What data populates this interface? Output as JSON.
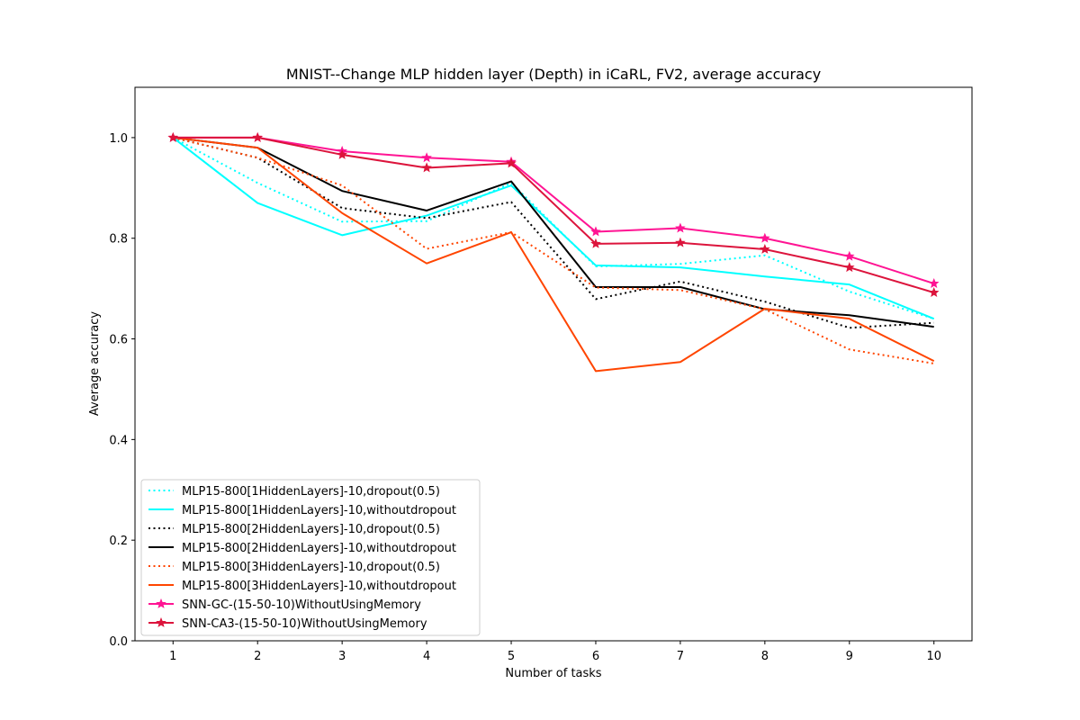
{
  "chart_data": {
    "type": "line",
    "title": "MNIST--Change MLP hidden layer (Depth) in iCaRL, FV2, average accuracy",
    "xlabel": "Number of tasks",
    "ylabel": "Average accuracy",
    "x": [
      1,
      2,
      3,
      4,
      5,
      6,
      7,
      8,
      9,
      10
    ],
    "xlim": [
      0.55,
      10.45
    ],
    "ylim": [
      0.0,
      1.1
    ],
    "xticks": [
      "1",
      "2",
      "3",
      "4",
      "5",
      "6",
      "7",
      "8",
      "9",
      "10"
    ],
    "yticks": [
      "0.0",
      "0.2",
      "0.4",
      "0.6",
      "0.8",
      "1.0"
    ],
    "grid": false,
    "legend_position": "lower-left",
    "series": [
      {
        "name": "MLP15-800[1HiddenLayers]-10,dropout(0.5)",
        "color": "#00ffff",
        "style": "dotted",
        "marker": "none",
        "values": [
          1.0,
          0.91,
          0.833,
          0.834,
          0.91,
          0.744,
          0.749,
          0.766,
          0.694,
          0.64
        ]
      },
      {
        "name": "MLP15-800[1HiddenLayers]-10,withoutdropout",
        "color": "#00ffff",
        "style": "solid",
        "marker": "none",
        "values": [
          1.0,
          0.87,
          0.806,
          0.845,
          0.905,
          0.746,
          0.742,
          0.724,
          0.708,
          0.64
        ]
      },
      {
        "name": "MLP15-800[2HiddenLayers]-10,dropout(0.5)",
        "color": "#000000",
        "style": "dotted",
        "marker": "none",
        "values": [
          1.0,
          0.96,
          0.86,
          0.84,
          0.872,
          0.679,
          0.714,
          0.674,
          0.622,
          0.632
        ]
      },
      {
        "name": "MLP15-800[2HiddenLayers]-10,withoutdropout",
        "color": "#000000",
        "style": "solid",
        "marker": "none",
        "values": [
          1.0,
          0.98,
          0.894,
          0.855,
          0.913,
          0.703,
          0.703,
          0.659,
          0.647,
          0.624
        ]
      },
      {
        "name": "MLP15-800[3HiddenLayers]-10,dropout(0.5)",
        "color": "#ff4500",
        "style": "dotted",
        "marker": "none",
        "values": [
          1.0,
          0.96,
          0.905,
          0.779,
          0.812,
          0.702,
          0.697,
          0.659,
          0.579,
          0.551
        ]
      },
      {
        "name": "MLP15-800[3HiddenLayers]-10,withoutdropout",
        "color": "#ff4500",
        "style": "solid",
        "marker": "none",
        "values": [
          1.0,
          0.98,
          0.85,
          0.75,
          0.812,
          0.536,
          0.554,
          0.66,
          0.64,
          0.556
        ]
      },
      {
        "name": "SNN-GC-(15-50-10)WithoutUsingMemory",
        "color": "#ff1493",
        "style": "solid",
        "marker": "star",
        "values": [
          1.0,
          1.0,
          0.973,
          0.96,
          0.952,
          0.813,
          0.82,
          0.8,
          0.764,
          0.71
        ]
      },
      {
        "name": "SNN-CA3-(15-50-10)WithoutUsingMemory",
        "color": "#dc143c",
        "style": "solid",
        "marker": "star",
        "values": [
          1.0,
          1.0,
          0.966,
          0.94,
          0.949,
          0.789,
          0.791,
          0.778,
          0.742,
          0.692
        ]
      }
    ]
  }
}
